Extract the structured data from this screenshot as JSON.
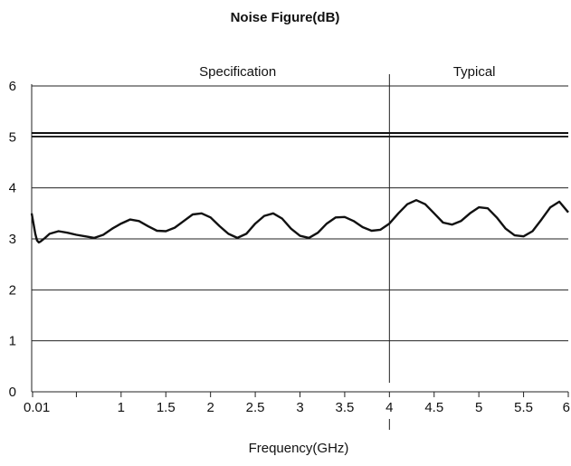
{
  "chart_data": {
    "type": "line",
    "title": "Noise Figure(dB)",
    "xlabel": "Frequency(GHz)",
    "ylabel": "",
    "xlim": [
      0,
      6
    ],
    "ylim": [
      0,
      6
    ],
    "x_ticks": [
      "0.01",
      "1",
      "1.5",
      "2",
      "2.5",
      "3",
      "3.5",
      "4",
      "4.5",
      "5",
      "5.5",
      "6"
    ],
    "x_tick_values": [
      0.01,
      1,
      1.5,
      2,
      2.5,
      3,
      3.5,
      4,
      4.5,
      5,
      5.5,
      6
    ],
    "y_ticks": [
      "0",
      "1",
      "2",
      "3",
      "4",
      "5",
      "6"
    ],
    "grid": "horizontal",
    "regions": [
      {
        "label": "Specification",
        "x_start": 0,
        "x_end": 4
      },
      {
        "label": "Typical",
        "x_start": 4,
        "x_end": 6
      }
    ],
    "reference_line": {
      "y": 5.05
    },
    "series": [
      {
        "x": [
          0.0,
          0.02,
          0.04,
          0.06,
          0.08,
          0.1,
          0.15,
          0.2,
          0.3,
          0.4,
          0.5,
          0.6,
          0.7,
          0.8,
          0.9,
          1.0,
          1.1,
          1.2,
          1.3,
          1.4,
          1.5,
          1.6,
          1.7,
          1.8,
          1.9,
          2.0,
          2.1,
          2.2,
          2.3,
          2.4,
          2.5,
          2.6,
          2.7,
          2.8,
          2.9,
          3.0,
          3.1,
          3.2,
          3.3,
          3.4,
          3.5,
          3.6,
          3.7,
          3.8,
          3.9,
          4.0,
          4.1,
          4.2,
          4.3,
          4.4,
          4.5,
          4.6,
          4.7,
          4.8,
          4.9,
          5.0,
          5.1,
          5.2,
          5.3,
          5.4,
          5.5,
          5.6,
          5.7,
          5.8,
          5.9,
          6.0
        ],
        "y": [
          3.5,
          3.3,
          3.1,
          2.97,
          2.93,
          2.95,
          3.02,
          3.1,
          3.15,
          3.12,
          3.08,
          3.05,
          3.02,
          3.08,
          3.2,
          3.3,
          3.38,
          3.35,
          3.25,
          3.16,
          3.15,
          3.22,
          3.35,
          3.48,
          3.5,
          3.42,
          3.25,
          3.1,
          3.02,
          3.1,
          3.3,
          3.45,
          3.5,
          3.4,
          3.2,
          3.06,
          3.02,
          3.12,
          3.3,
          3.42,
          3.43,
          3.35,
          3.23,
          3.16,
          3.18,
          3.3,
          3.5,
          3.68,
          3.76,
          3.68,
          3.5,
          3.32,
          3.28,
          3.35,
          3.5,
          3.62,
          3.6,
          3.42,
          3.2,
          3.07,
          3.05,
          3.15,
          3.38,
          3.62,
          3.73,
          3.52
        ]
      }
    ]
  }
}
